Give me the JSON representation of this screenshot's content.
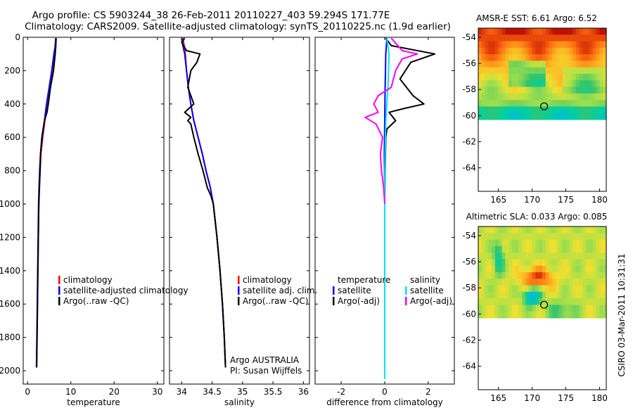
{
  "figure": {
    "title_line1": "Argo profile: CS 5903244_38 26-Feb-2011 20110227_403 59.294S 171.77E",
    "title_line2": "Climatology: CARS2009. Satellite-adjusted climatology: synTS_20110225.nc (1.9d earlier)",
    "side_stamp": "CSIRO 03-Mar-2011 10:31:31"
  },
  "colors": {
    "climatology": "#ff0000",
    "satellite": "#0000ff",
    "argo": "#000000",
    "diff_satellite": "#00e5ee",
    "diff_argo_adj": "#ff00ff"
  },
  "chart_data": [
    {
      "type": "line",
      "id": "temperature",
      "xlabel": "temperature",
      "xlim": [
        -1,
        31.5
      ],
      "ylim": [
        0,
        2080
      ],
      "y_reversed": true,
      "xticks": [
        0,
        10,
        20,
        30
      ],
      "yticks": [
        0,
        200,
        400,
        600,
        800,
        1000,
        1200,
        1400,
        1600,
        1800,
        2000
      ],
      "legend": [
        "climatology",
        "satellite-adjusted climatology",
        "Argo(..raw -QC)"
      ],
      "series": [
        {
          "name": "climatology",
          "color": "#ff0000",
          "points": [
            [
              6.6,
              5
            ],
            [
              6.5,
              50
            ],
            [
              6.3,
              100
            ],
            [
              5.8,
              200
            ],
            [
              5.2,
              300
            ],
            [
              4.6,
              400
            ],
            [
              4.0,
              500
            ],
            [
              3.5,
              600
            ],
            [
              3.1,
              700
            ],
            [
              2.9,
              800
            ],
            [
              2.7,
              900
            ],
            [
              2.6,
              1000
            ],
            [
              2.5,
              1200
            ],
            [
              2.4,
              1400
            ],
            [
              2.3,
              1600
            ],
            [
              2.2,
              1800
            ],
            [
              2.1,
              1980
            ]
          ]
        },
        {
          "name": "satellite-adjusted climatology",
          "color": "#0000ff",
          "points": [
            [
              6.5,
              5
            ],
            [
              6.4,
              50
            ],
            [
              6.1,
              100
            ],
            [
              5.6,
              200
            ],
            [
              5.0,
              300
            ],
            [
              4.4,
              400
            ],
            [
              3.9,
              500
            ],
            [
              3.4,
              600
            ],
            [
              3.0,
              700
            ],
            [
              2.8,
              800
            ],
            [
              2.65,
              900
            ],
            [
              2.55,
              1000
            ],
            [
              2.45,
              1200
            ],
            [
              2.35,
              1400
            ],
            [
              2.25,
              1600
            ],
            [
              2.15,
              1800
            ],
            [
              2.05,
              1980
            ]
          ]
        },
        {
          "name": "Argo(..raw -QC)",
          "color": "#000000",
          "points": [
            [
              6.6,
              5
            ],
            [
              6.5,
              60
            ],
            [
              6.4,
              100
            ],
            [
              6.0,
              200
            ],
            [
              5.3,
              300
            ],
            [
              4.8,
              400
            ],
            [
              4.5,
              450
            ],
            [
              3.9,
              500
            ],
            [
              3.6,
              550
            ],
            [
              3.3,
              600
            ],
            [
              3.0,
              700
            ],
            [
              2.9,
              800
            ],
            [
              2.75,
              900
            ],
            [
              2.6,
              1000
            ],
            [
              2.5,
              1200
            ],
            [
              2.4,
              1400
            ],
            [
              2.3,
              1600
            ],
            [
              2.2,
              1800
            ],
            [
              2.1,
              1980
            ]
          ]
        }
      ]
    },
    {
      "type": "line",
      "id": "salinity",
      "xlabel": "salinity",
      "xlim": [
        33.8,
        36.1
      ],
      "ylim": [
        0,
        2080
      ],
      "y_reversed": true,
      "xticks": [
        34,
        34.5,
        35,
        35.5,
        36
      ],
      "yticks": [
        0,
        200,
        400,
        600,
        800,
        1000,
        1200,
        1400,
        1600,
        1800,
        2000
      ],
      "legend": [
        "climatology",
        "satellite adj. clim.",
        "Argo(..raw -QC)"
      ],
      "annotation": [
        "Argo AUSTRALIA",
        "PI: Susan Wijffels"
      ],
      "series": [
        {
          "name": "climatology",
          "color": "#ff0000",
          "points": [
            [
              34.02,
              5
            ],
            [
              34.04,
              50
            ],
            [
              34.06,
              100
            ],
            [
              34.08,
              200
            ],
            [
              34.11,
              300
            ],
            [
              34.15,
              400
            ],
            [
              34.2,
              500
            ],
            [
              34.27,
              600
            ],
            [
              34.34,
              700
            ],
            [
              34.4,
              800
            ],
            [
              34.47,
              900
            ],
            [
              34.52,
              1000
            ],
            [
              34.58,
              1200
            ],
            [
              34.63,
              1400
            ],
            [
              34.67,
              1600
            ],
            [
              34.7,
              1800
            ],
            [
              34.72,
              1980
            ]
          ]
        },
        {
          "name": "satellite adj. clim.",
          "color": "#0000ff",
          "points": [
            [
              34.0,
              5
            ],
            [
              34.02,
              50
            ],
            [
              34.05,
              100
            ],
            [
              34.08,
              200
            ],
            [
              34.11,
              300
            ],
            [
              34.15,
              400
            ],
            [
              34.2,
              500
            ],
            [
              34.27,
              600
            ],
            [
              34.34,
              700
            ],
            [
              34.4,
              800
            ],
            [
              34.47,
              900
            ],
            [
              34.52,
              1000
            ],
            [
              34.58,
              1200
            ],
            [
              34.63,
              1400
            ],
            [
              34.67,
              1600
            ],
            [
              34.7,
              1800
            ],
            [
              34.72,
              1980
            ]
          ]
        },
        {
          "name": "Argo(..raw -QC)",
          "color": "#000000",
          "points": [
            [
              34.05,
              5
            ],
            [
              34.0,
              30
            ],
            [
              34.08,
              80
            ],
            [
              34.3,
              100
            ],
            [
              34.25,
              150
            ],
            [
              34.15,
              200
            ],
            [
              34.1,
              300
            ],
            [
              34.2,
              400
            ],
            [
              34.05,
              450
            ],
            [
              34.15,
              480
            ],
            [
              34.1,
              500
            ],
            [
              34.15,
              520
            ],
            [
              34.2,
              600
            ],
            [
              34.27,
              700
            ],
            [
              34.35,
              800
            ],
            [
              34.42,
              900
            ],
            [
              34.48,
              950
            ],
            [
              34.52,
              1000
            ],
            [
              34.58,
              1200
            ],
            [
              34.63,
              1400
            ],
            [
              34.67,
              1600
            ],
            [
              34.7,
              1800
            ],
            [
              34.72,
              1980
            ]
          ]
        }
      ]
    },
    {
      "type": "line",
      "id": "difference",
      "xlabel": "difference from climatology",
      "xlim": [
        -3.2,
        3.2
      ],
      "ylim": [
        0,
        2080
      ],
      "y_reversed": true,
      "xticks": [
        -2,
        0,
        2
      ],
      "yticks": [
        0,
        200,
        400,
        600,
        800,
        1000,
        1200,
        1400,
        1600,
        1800,
        2000
      ],
      "legend_left": [
        "temperature",
        "satellite",
        "Argo(-adj)"
      ],
      "legend_right": [
        "salinity",
        "satellite",
        "Argo(-adj)"
      ],
      "series": [
        {
          "name": "temperature satellite",
          "color": "#0000ff",
          "points": [
            [
              0.1,
              5
            ],
            [
              0.05,
              100
            ],
            [
              0.02,
              300
            ],
            [
              0,
              500
            ],
            [
              -0.02,
              700
            ],
            [
              0,
              900
            ],
            [
              0,
              1200
            ],
            [
              0,
              1500
            ],
            [
              0,
              1800
            ],
            [
              0,
              2000
            ]
          ]
        },
        {
          "name": "temperature Argo(-adj)",
          "color": "#000000",
          "points": [
            [
              0.05,
              5
            ],
            [
              0.3,
              50
            ],
            [
              2.3,
              100
            ],
            [
              1.2,
              150
            ],
            [
              0.7,
              250
            ],
            [
              1.3,
              350
            ],
            [
              1.8,
              400
            ],
            [
              0.8,
              430
            ],
            [
              0.2,
              450
            ],
            [
              0.5,
              500
            ],
            [
              0.1,
              550
            ],
            [
              0.05,
              600
            ],
            [
              0.02,
              800
            ],
            [
              0,
              1000
            ],
            [
              0,
              1300
            ],
            [
              0,
              1600
            ],
            [
              0,
              1900
            ],
            [
              0,
              2000
            ]
          ]
        },
        {
          "name": "salinity satellite",
          "color": "#00e5ee",
          "points": [
            [
              0.1,
              5
            ],
            [
              0.2,
              100
            ],
            [
              0.15,
              300
            ],
            [
              0.05,
              500
            ],
            [
              0.02,
              700
            ],
            [
              0,
              900
            ],
            [
              0,
              1200
            ],
            [
              0,
              1500
            ],
            [
              0,
              1800
            ],
            [
              0,
              2050
            ]
          ]
        },
        {
          "name": "salinity Argo(-adj)",
          "color": "#ff00ff",
          "points": [
            [
              0.3,
              5
            ],
            [
              0.8,
              80
            ],
            [
              1.5,
              100
            ],
            [
              0.8,
              130
            ],
            [
              0.5,
              200
            ],
            [
              0.3,
              300
            ],
            [
              -0.3,
              350
            ],
            [
              -0.5,
              400
            ],
            [
              -0.3,
              450
            ],
            [
              -0.9,
              480
            ],
            [
              -0.4,
              520
            ],
            [
              -0.1,
              600
            ],
            [
              -0.2,
              700
            ],
            [
              -0.15,
              800
            ],
            [
              -0.05,
              900
            ],
            [
              0,
              1000
            ]
          ]
        }
      ]
    },
    {
      "type": "heatmap",
      "id": "sst_map",
      "title": "AMSR-E SST: 6.61 Argo: 6.52",
      "xlim": [
        162,
        181
      ],
      "ylim": [
        -65.8,
        -53.3
      ],
      "xticks": [
        165,
        170,
        175,
        180
      ],
      "yticks": [
        -54,
        -56,
        -58,
        -60,
        -62,
        -64
      ],
      "data_extent_lat": [
        -53.3,
        -60.1
      ],
      "marker": {
        "lon": 171.77,
        "lat": -59.29
      }
    },
    {
      "type": "heatmap",
      "id": "sla_map",
      "title": "Altimetric SLA: 0.033 Argo: 0.085",
      "xlim": [
        162,
        181
      ],
      "ylim": [
        -65.8,
        -53.3
      ],
      "xticks": [
        165,
        170,
        175,
        180
      ],
      "yticks": [
        -54,
        -56,
        -58,
        -60,
        -62,
        -64
      ],
      "data_extent_lat": [
        -53.3,
        -60.2
      ],
      "marker": {
        "lon": 171.77,
        "lat": -59.29
      }
    }
  ]
}
